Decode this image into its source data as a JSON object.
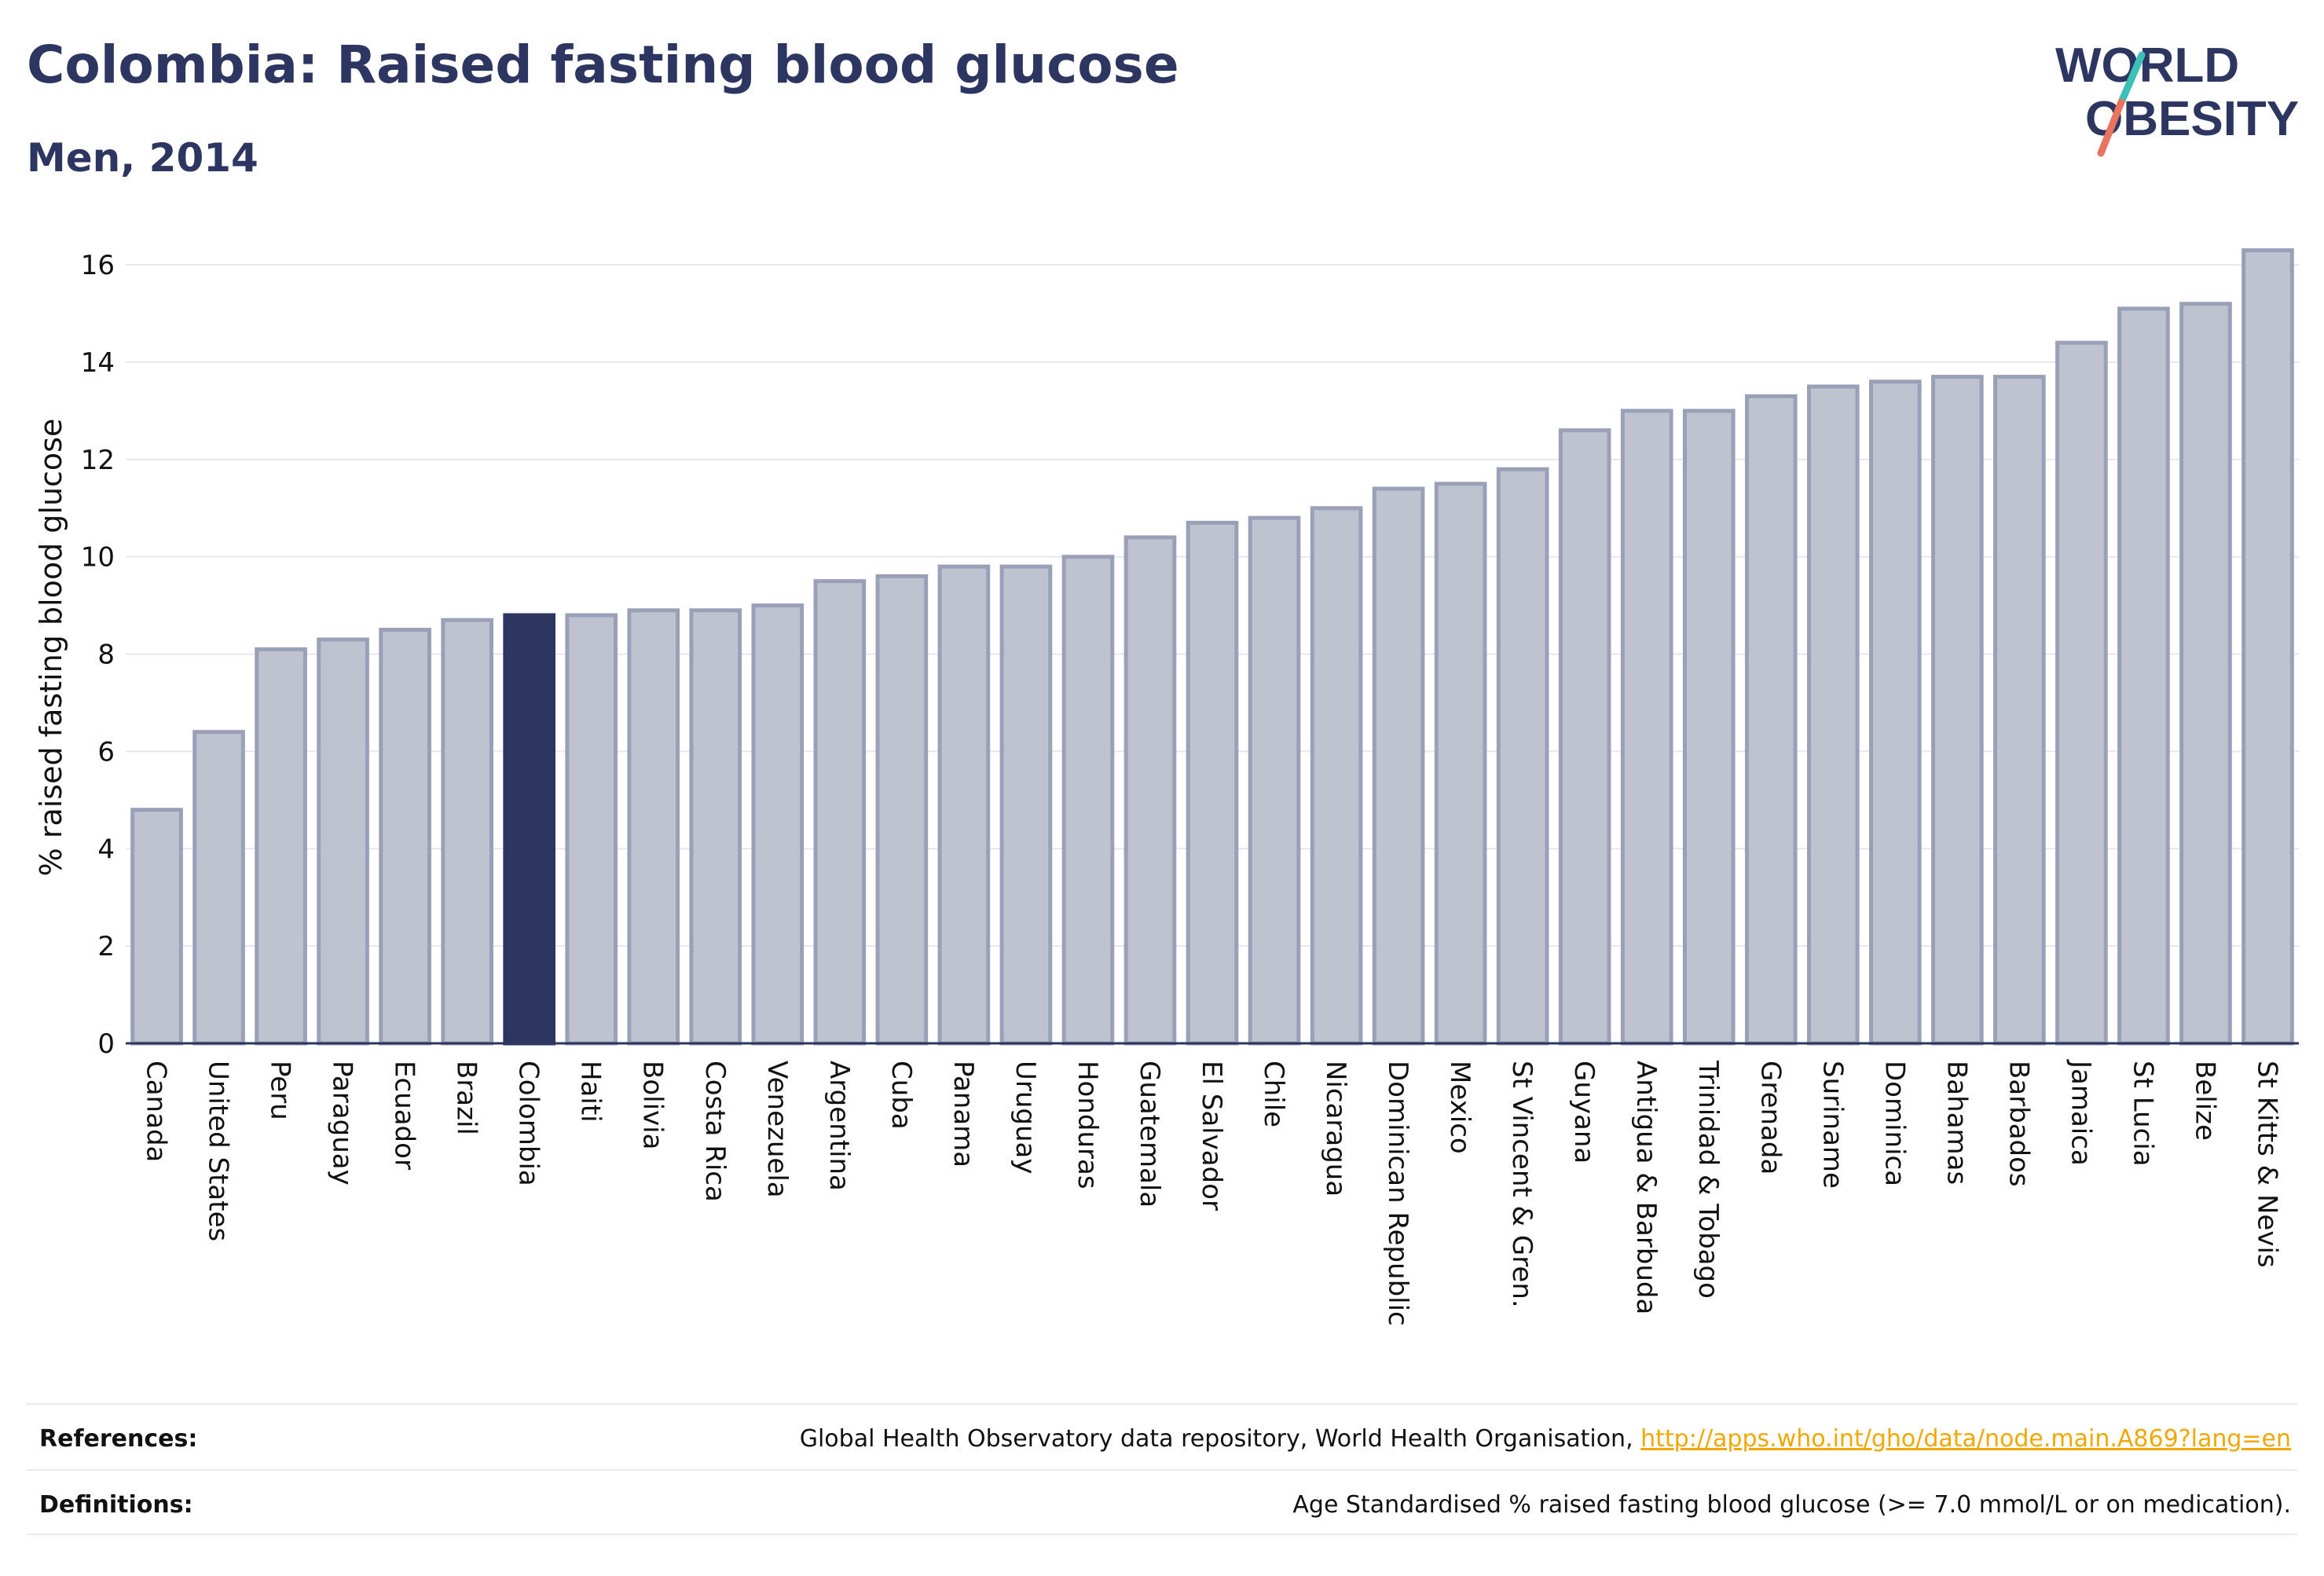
{
  "header": {
    "title": "Colombia: Raised fasting blood glucose",
    "subtitle": "Men, 2014",
    "logo_text_line1": "WORLD",
    "logo_text_line2": "OBESITY"
  },
  "colors": {
    "title": "#2d3561",
    "bar_fill": "#bfc3d0",
    "bar_stroke": "#9aa0b8",
    "highlight": "#2d3561",
    "logo_slash_top": "#3bbfb6",
    "logo_slash_bottom": "#e8735f",
    "link": "#f0a800"
  },
  "chart_data": {
    "type": "bar",
    "ylabel": "% raised fasting blood glucose",
    "xlabel": "",
    "ylim": [
      0,
      16.6
    ],
    "yticks": [
      0,
      2,
      4,
      6,
      8,
      10,
      12,
      14,
      16
    ],
    "grid": true,
    "highlight_category": "Colombia",
    "categories": [
      "Canada",
      "United States",
      "Peru",
      "Paraguay",
      "Ecuador",
      "Brazil",
      "Colombia",
      "Haiti",
      "Bolivia",
      "Costa Rica",
      "Venezuela",
      "Argentina",
      "Cuba",
      "Panama",
      "Uruguay",
      "Honduras",
      "Guatemala",
      "El Salvador",
      "Chile",
      "Nicaragua",
      "Dominican Republic",
      "Mexico",
      "St Vincent & Gren.",
      "Guyana",
      "Antigua & Barbuda",
      "Trinidad & Tobago",
      "Grenada",
      "Suriname",
      "Dominica",
      "Bahamas",
      "Barbados",
      "Jamaica",
      "St Lucia",
      "Belize",
      "St Kitts & Nevis"
    ],
    "values": [
      4.8,
      6.4,
      8.1,
      8.3,
      8.5,
      8.7,
      8.8,
      8.8,
      8.9,
      8.9,
      9.0,
      9.5,
      9.6,
      9.8,
      9.8,
      10.0,
      10.4,
      10.7,
      10.8,
      11.0,
      11.4,
      11.5,
      11.8,
      12.6,
      13.0,
      13.0,
      13.3,
      13.5,
      13.6,
      13.7,
      13.7,
      14.4,
      15.1,
      15.2,
      16.3
    ]
  },
  "footer": {
    "references_label": "References:",
    "references_text": "Global Health Observatory data repository, World Health Organisation, ",
    "references_link": "http://apps.who.int/gho/data/node.main.A869?lang=en",
    "definitions_label": "Definitions:",
    "definitions_text": "Age Standardised % raised fasting blood glucose (>= 7.0 mmol/L or on medication)."
  }
}
